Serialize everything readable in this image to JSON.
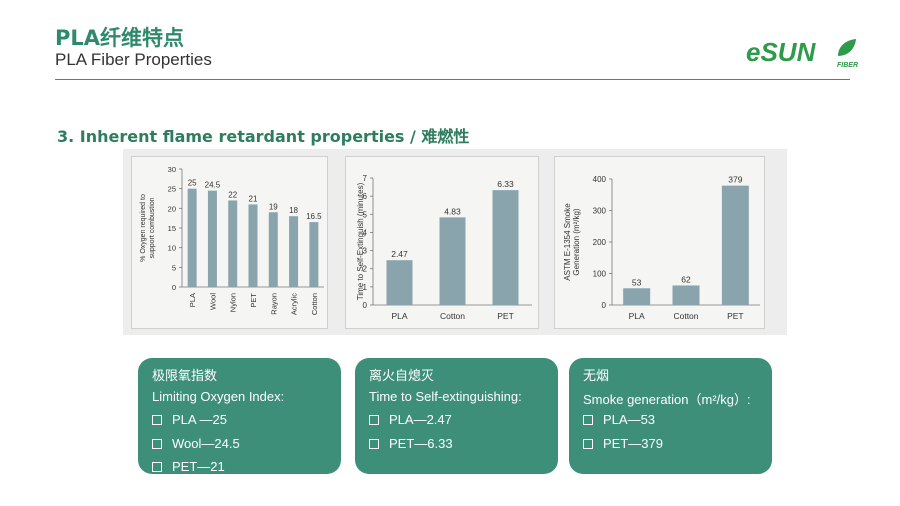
{
  "header": {
    "title_cn": "PLA纤维特点",
    "title_en": "PLA Fiber Properties",
    "logo_main": "eSUN",
    "logo_sub": "FIBER"
  },
  "section": {
    "heading": "3. Inherent flame retardant properties / 难燃性"
  },
  "colors": {
    "bar": "#8aa4ae",
    "accent": "#3d8f79",
    "title": "#2f8a6c"
  },
  "chart_data": [
    {
      "type": "bar",
      "ylabel": "% Oxygen required to support combustion",
      "ylim": [
        0,
        30
      ],
      "yticks": [
        0,
        5,
        10,
        15,
        20,
        25,
        30
      ],
      "categories": [
        "PLA",
        "Wool",
        "Nylon",
        "PET",
        "Rayon",
        "Acrylic",
        "Cotton"
      ],
      "values": [
        25,
        24.5,
        22,
        21,
        19,
        18,
        16.5
      ],
      "value_labels": [
        "25",
        "24.5",
        "22",
        "21",
        "19",
        "18",
        "16.5"
      ]
    },
    {
      "type": "bar",
      "ylabel": "Time to Self-Extinguish (minutes)",
      "ylim": [
        0,
        7
      ],
      "yticks": [
        0,
        1,
        2,
        3,
        4,
        5,
        6,
        7
      ],
      "categories": [
        "PLA",
        "Cotton",
        "PET"
      ],
      "values": [
        2.47,
        4.83,
        6.33
      ],
      "value_labels": [
        "2.47",
        "4.83",
        "6.33"
      ]
    },
    {
      "type": "bar",
      "ylabel": "ASTM E-1354 Smoke Generation (m²/kg)",
      "ylim": [
        0,
        400
      ],
      "yticks": [
        0,
        100,
        200,
        300,
        400
      ],
      "categories": [
        "PLA",
        "Cotton",
        "PET"
      ],
      "values": [
        53,
        62,
        379
      ],
      "value_labels": [
        "53",
        "62",
        "379"
      ]
    }
  ],
  "callouts": [
    {
      "title_cn": "极限氧指数",
      "title_en": "Limiting Oxygen Index:",
      "items": [
        "PLA —25",
        "Wool—24.5",
        "PET—21"
      ]
    },
    {
      "title_cn": "离火自熄灭",
      "title_en": "Time to Self-extinguishing:",
      "items": [
        "PLA—2.47",
        "PET—6.33"
      ]
    },
    {
      "title_cn": "无烟",
      "title_en": "Smoke generation（m²/kg）:",
      "items": [
        "PLA—53",
        "PET—379"
      ]
    }
  ]
}
